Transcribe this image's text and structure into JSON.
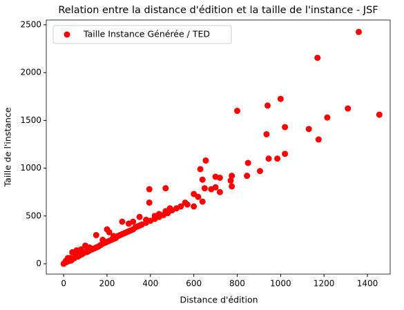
{
  "chart_data": {
    "type": "scatter",
    "title": "Relation entre la distance d'édition et la taille de l'instance - JSF",
    "xlabel": "Distance d'édition",
    "ylabel": "Taille de l'instance",
    "series": [
      {
        "name": "Taille Instance Générée / TED",
        "color": "#ff0000",
        "x": [
          1360,
          1170,
          1000,
          940,
          800,
          1310,
          1455,
          1215,
          1020,
          1130,
          935,
          1175,
          1020,
          985,
          945,
          655,
          850,
          630,
          905,
          640,
          775,
          845,
          700,
          720,
          770,
          775,
          700,
          650,
          470,
          395,
          680,
          720,
          600,
          620,
          640,
          560,
          570,
          395,
          600,
          490,
          470,
          440,
          420,
          350,
          380,
          320,
          270,
          300,
          200,
          210,
          150,
          230,
          180,
          100,
          120,
          80,
          60,
          40,
          20,
          10,
          5,
          0,
          15,
          25,
          30,
          35,
          45,
          50,
          55,
          65,
          70,
          75,
          85,
          90,
          100,
          105,
          110,
          120,
          130,
          140,
          150,
          160,
          170,
          180,
          190,
          200,
          210,
          220,
          230,
          240,
          250,
          260,
          270,
          280,
          290,
          300,
          310,
          320,
          330,
          340,
          350,
          360,
          380,
          400,
          420,
          440,
          460,
          480,
          500,
          520,
          540,
          60,
          30
        ],
        "values": [
          2425,
          2155,
          1725,
          1655,
          1600,
          1625,
          1560,
          1530,
          1430,
          1410,
          1355,
          1300,
          1150,
          1100,
          1100,
          1080,
          1055,
          990,
          970,
          880,
          920,
          920,
          910,
          900,
          870,
          810,
          800,
          790,
          790,
          780,
          780,
          750,
          730,
          700,
          650,
          640,
          620,
          640,
          600,
          580,
          550,
          520,
          500,
          490,
          460,
          440,
          440,
          420,
          360,
          330,
          300,
          290,
          250,
          190,
          170,
          150,
          140,
          120,
          60,
          30,
          10,
          0,
          20,
          30,
          40,
          35,
          55,
          60,
          70,
          75,
          85,
          90,
          100,
          110,
          120,
          130,
          125,
          140,
          150,
          160,
          170,
          180,
          195,
          210,
          220,
          230,
          240,
          250,
          260,
          270,
          290,
          300,
          310,
          320,
          330,
          340,
          350,
          360,
          380,
          390,
          400,
          410,
          430,
          450,
          470,
          490,
          510,
          530,
          560,
          580,
          600,
          90,
          60
        ]
      }
    ],
    "xlim": [
      -80,
      1505
    ],
    "ylim": [
      -108,
      2550
    ],
    "xticks": [
      0,
      200,
      400,
      600,
      800,
      1000,
      1200,
      1400
    ],
    "yticks": [
      0,
      500,
      1000,
      1500,
      2000,
      2500
    ],
    "legend": "upper left"
  }
}
